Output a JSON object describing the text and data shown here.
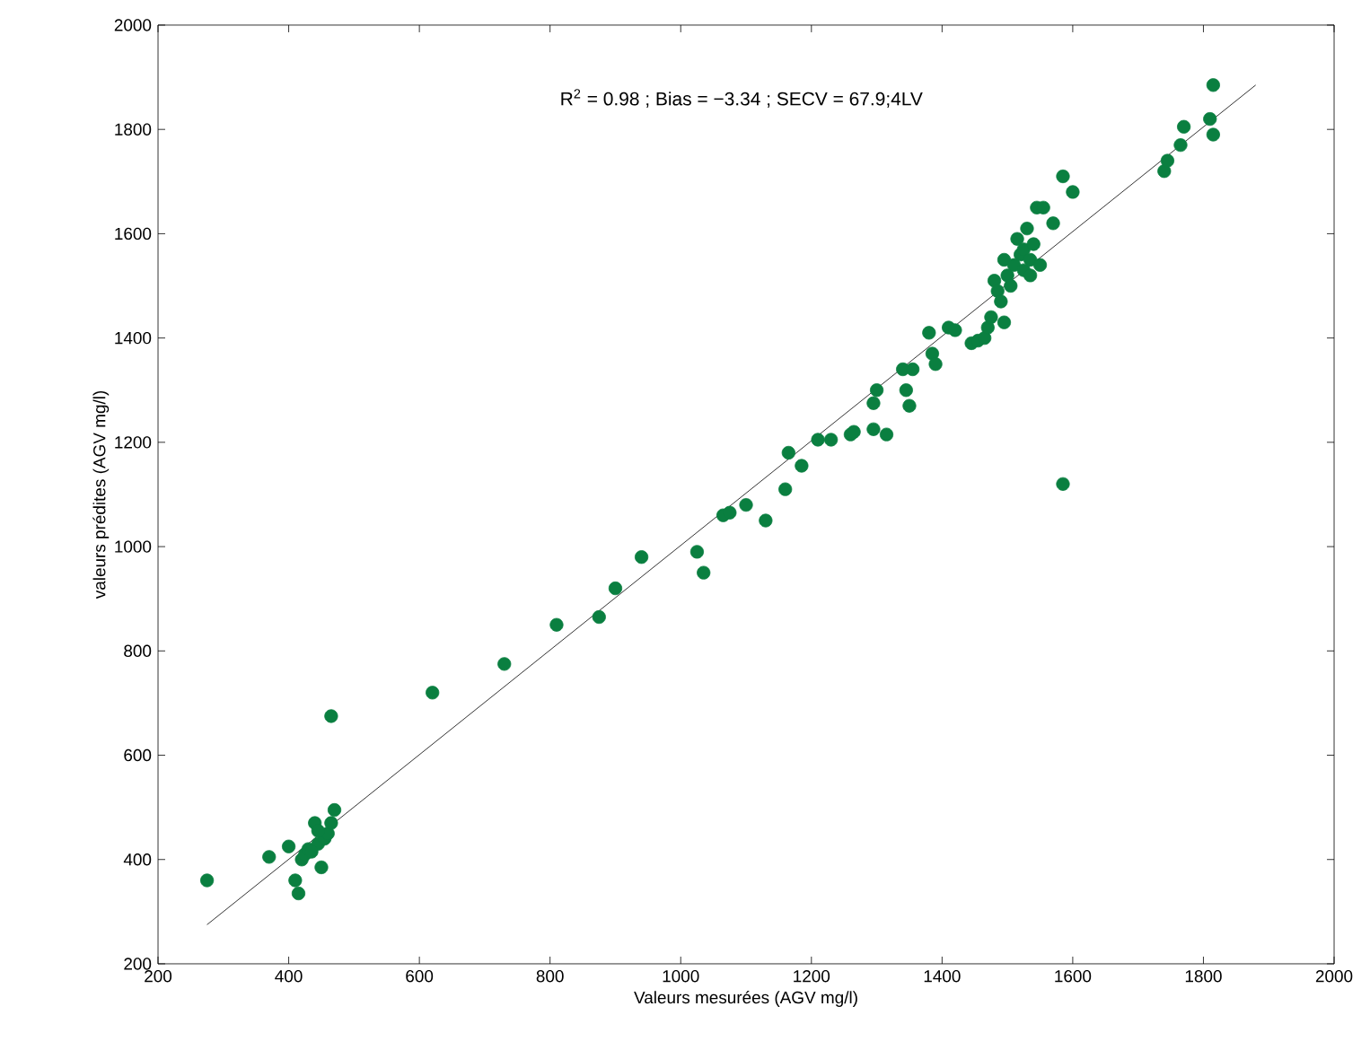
{
  "chart_data": {
    "type": "scatter",
    "xlabel": "Valeurs mesurées (AGV mg/l)",
    "ylabel": "valeurs prédites (AGV mg/l)",
    "annotations": [
      "R$^{2}$ = 0.98 ; Bias = −3.34 ; SECV = 67.9;4LV"
    ],
    "xlim": [
      200,
      2000
    ],
    "ylim": [
      200,
      2000
    ],
    "xticks": [
      200,
      400,
      600,
      800,
      1000,
      1200,
      1400,
      1600,
      1800,
      2000
    ],
    "yticks": [
      200,
      400,
      600,
      800,
      1000,
      1200,
      1400,
      1600,
      1800,
      2000
    ],
    "series": [
      {
        "color": "#0a7f40",
        "marker": "circle",
        "x": [
          275,
          370,
          400,
          410,
          415,
          420,
          425,
          430,
          440,
          445,
          450,
          455,
          460,
          465,
          465,
          470,
          435,
          445,
          620,
          730,
          810,
          875,
          900,
          940,
          1025,
          1035,
          1065,
          1075,
          1100,
          1130,
          1160,
          1165,
          1185,
          1210,
          1230,
          1260,
          1265,
          1295,
          1300,
          1295,
          1315,
          1340,
          1345,
          1350,
          1355,
          1380,
          1385,
          1390,
          1410,
          1420,
          1445,
          1455,
          1465,
          1470,
          1475,
          1480,
          1485,
          1490,
          1495,
          1495,
          1500,
          1505,
          1510,
          1515,
          1520,
          1525,
          1525,
          1530,
          1535,
          1535,
          1540,
          1545,
          1550,
          1555,
          1570,
          1585,
          1600,
          1585,
          1740,
          1745,
          1765,
          1770,
          1810,
          1815,
          1815
        ],
        "values": [
          360,
          405,
          425,
          360,
          335,
          400,
          410,
          420,
          470,
          430,
          385,
          440,
          450,
          470,
          675,
          495,
          415,
          455,
          720,
          775,
          850,
          865,
          920,
          980,
          990,
          950,
          1060,
          1065,
          1080,
          1050,
          1110,
          1180,
          1155,
          1205,
          1205,
          1215,
          1220,
          1225,
          1300,
          1275,
          1215,
          1340,
          1300,
          1270,
          1340,
          1410,
          1370,
          1350,
          1420,
          1415,
          1390,
          1395,
          1400,
          1420,
          1440,
          1510,
          1490,
          1470,
          1430,
          1550,
          1520,
          1500,
          1540,
          1590,
          1560,
          1530,
          1570,
          1610,
          1520,
          1550,
          1580,
          1650,
          1540,
          1650,
          1620,
          1710,
          1680,
          1120,
          1720,
          1740,
          1770,
          1805,
          1820,
          1885,
          1790
        ]
      },
      {
        "type": "line",
        "marker": "none",
        "color": "#000000",
        "x": [
          275,
          1880
        ],
        "values": [
          275,
          1885
        ]
      }
    ]
  }
}
